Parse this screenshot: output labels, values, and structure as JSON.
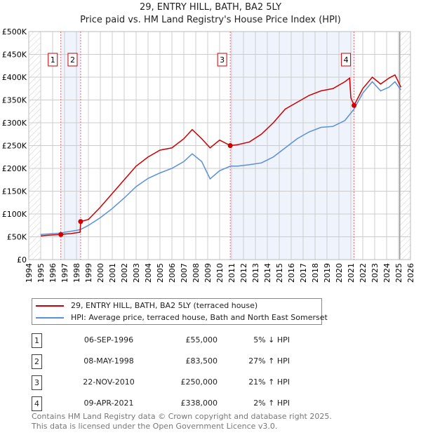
{
  "chart_data": {
    "type": "line",
    "title": "29, ENTRY HILL, BATH, BA2 5LY",
    "subtitle": "Price paid vs. HM Land Registry's House Price Index (HPI)",
    "xlim": [
      1994,
      2026
    ],
    "ylim": [
      0,
      500000
    ],
    "x_ticks": [
      "1994",
      "1995",
      "1996",
      "1997",
      "1998",
      "1999",
      "2000",
      "2001",
      "2002",
      "2003",
      "2004",
      "2005",
      "2006",
      "2007",
      "2008",
      "2009",
      "2010",
      "2011",
      "2012",
      "2013",
      "2014",
      "2015",
      "2016",
      "2017",
      "2018",
      "2019",
      "2020",
      "2021",
      "2022",
      "2023",
      "2024",
      "2025",
      "2026"
    ],
    "y_ticks": [
      {
        "v": 0,
        "l": "£0"
      },
      {
        "v": 50000,
        "l": "£50K"
      },
      {
        "v": 100000,
        "l": "£100K"
      },
      {
        "v": 150000,
        "l": "£150K"
      },
      {
        "v": 200000,
        "l": "£200K"
      },
      {
        "v": 250000,
        "l": "£250K"
      },
      {
        "v": 300000,
        "l": "£300K"
      },
      {
        "v": 350000,
        "l": "£350K"
      },
      {
        "v": 400000,
        "l": "£400K"
      },
      {
        "v": 450000,
        "l": "£450K"
      },
      {
        "v": 500000,
        "l": "£500K"
      }
    ],
    "series": [
      {
        "name": "29, ENTRY HILL, BATH, BA2 5LY (terraced house)",
        "color": "#cc0000",
        "x": [
          1995,
          1995.5,
          1996,
          1996.69,
          1997,
          1997.5,
          1998.3,
          1998.35,
          1999,
          2000,
          2001,
          2002,
          2003,
          2004,
          2005,
          2006,
          2007,
          2007.7,
          2008.5,
          2009.2,
          2010,
          2010.9,
          2011.5,
          2012.5,
          2013.5,
          2014.5,
          2015.5,
          2016.5,
          2017.5,
          2018.5,
          2019.5,
          2020.5,
          2020.9,
          2021.0,
          2021.27,
          2022,
          2022.8,
          2023.5,
          2024.2,
          2024.7,
          2025.2
        ],
        "y": [
          52000,
          53000,
          54000,
          55000,
          56000,
          57000,
          60000,
          83500,
          88000,
          115000,
          145000,
          175000,
          205000,
          225000,
          240000,
          245000,
          265000,
          285000,
          265000,
          245000,
          262000,
          250000,
          252000,
          258000,
          275000,
          300000,
          330000,
          345000,
          360000,
          370000,
          375000,
          390000,
          398000,
          355000,
          338000,
          375000,
          400000,
          385000,
          398000,
          405000,
          378000
        ]
      },
      {
        "name": "HPI: Average price, terraced house, Bath and North East Somerset",
        "color": "#5b8fd6",
        "x": [
          1995,
          1996,
          1996.69,
          1997,
          1998,
          1998.35,
          1999,
          2000,
          2001,
          2002,
          2003,
          2004,
          2005,
          2006,
          2007,
          2007.7,
          2008.5,
          2009.2,
          2010,
          2010.9,
          2011.5,
          2012.5,
          2013.5,
          2014.5,
          2015.5,
          2016.5,
          2017.5,
          2018.5,
          2019.5,
          2020.5,
          2021.27,
          2022,
          2022.8,
          2023.5,
          2024.2,
          2024.7,
          2025.2
        ],
        "y": [
          55000,
          57000,
          58000,
          60000,
          64000,
          66000,
          75000,
          92000,
          112000,
          135000,
          160000,
          178000,
          190000,
          200000,
          215000,
          232000,
          215000,
          177000,
          195000,
          205000,
          205000,
          208000,
          212000,
          225000,
          245000,
          265000,
          280000,
          290000,
          292000,
          305000,
          330000,
          365000,
          390000,
          370000,
          378000,
          390000,
          372000
        ]
      }
    ],
    "sales": [
      {
        "id": "1",
        "x": 1996.69,
        "y": 55000,
        "date": "06-SEP-1996",
        "price": "£55,000",
        "hpi": "5% ↓ HPI"
      },
      {
        "id": "2",
        "x": 1998.35,
        "y": 83500,
        "date": "08-MAY-1998",
        "price": "£83,500",
        "hpi": "27% ↑ HPI"
      },
      {
        "id": "3",
        "x": 2010.89,
        "y": 250000,
        "date": "22-NOV-2010",
        "price": "£250,000",
        "hpi": "21% ↑ HPI"
      },
      {
        "id": "4",
        "x": 2021.27,
        "y": 338000,
        "date": "09-APR-2021",
        "price": "£338,000",
        "hpi": "2% ↑ HPI"
      }
    ],
    "legend_placement": "below"
  },
  "footer": {
    "line1": "Contains HM Land Registry data © Crown copyright and database right 2025.",
    "line2": "This data is licensed under the Open Government Licence v3.0."
  }
}
